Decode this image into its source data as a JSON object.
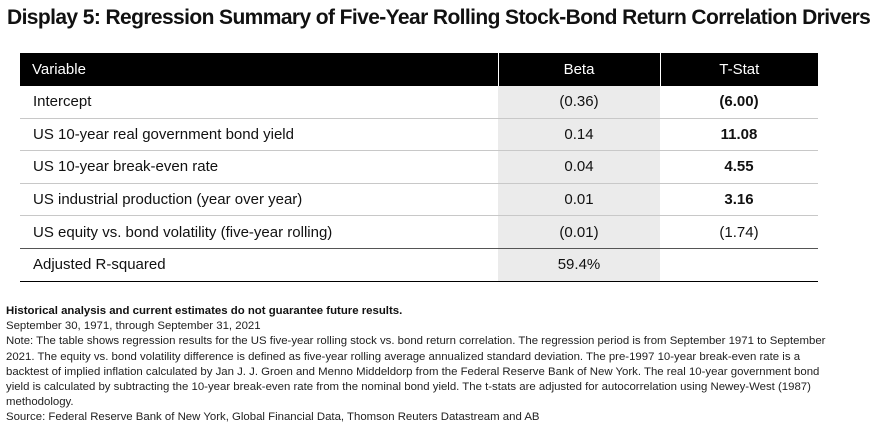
{
  "title": "Display 5: Regression Summary of Five-Year Rolling Stock-Bond Return Correlation Drivers",
  "table": {
    "headers": [
      "Variable",
      "Beta",
      "T-Stat"
    ],
    "rows": [
      {
        "variable": "Intercept",
        "beta": "(0.36)",
        "tstat": "(6.00)",
        "tstat_bold": true
      },
      {
        "variable": "US 10-year real government bond yield",
        "beta": "0.14",
        "tstat": "11.08",
        "tstat_bold": true
      },
      {
        "variable": "US 10-year break-even rate",
        "beta": "0.04",
        "tstat": "4.55",
        "tstat_bold": true
      },
      {
        "variable": "US industrial production (year over year)",
        "beta": "0.01",
        "tstat": "3.16",
        "tstat_bold": true
      },
      {
        "variable": "US equity vs. bond volatility (five-year rolling)",
        "beta": "(0.01)",
        "tstat": "(1.74)",
        "tstat_bold": false
      }
    ],
    "summary": {
      "variable": "Adjusted R-squared",
      "beta": "59.4%",
      "tstat": ""
    }
  },
  "notes": {
    "disclaimer": "Historical analysis and current estimates do not guarantee future results.",
    "period": "September 30, 1971, through September 31, 2021",
    "note": "Note: The table shows regression results for the US five-year rolling stock vs. bond return correlation. The regression period is from September 1971 to September 2021. The equity vs. bond volatility difference is defined as five-year rolling average annualized standard deviation. The pre-1997 10-year break-even rate is a backtest of implied inflation calculated by Jan J. J. Groen and Menno Middeldorp from the Federal Reserve Bank of New York. The real 10-year government bond yield is calculated by subtracting the 10-year break-even rate from the nominal bond yield. The t-stats are adjusted for autocorrelation using Newey-West (1987) methodology.",
    "source": "Source: Federal Reserve Bank of New York, Global Financial Data, Thomson Reuters Datastream and AB"
  }
}
